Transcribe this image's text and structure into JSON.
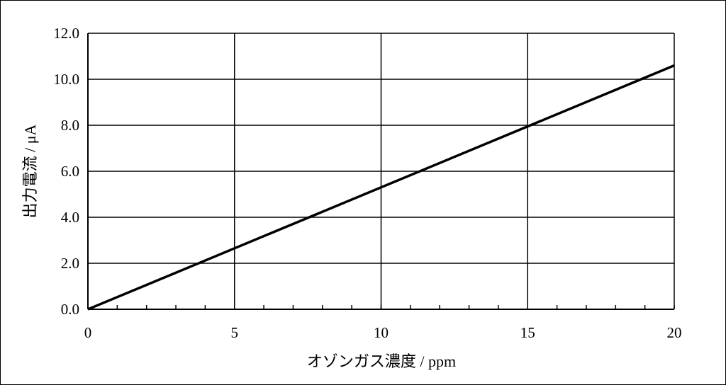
{
  "chart_data": {
    "type": "line",
    "title": "",
    "xlabel": "オゾンガス濃度 / ppm",
    "ylabel": "出力電流 / μA",
    "xlim": [
      0,
      20
    ],
    "ylim": [
      0,
      12
    ],
    "x_ticks": [
      "0",
      "5",
      "10",
      "15",
      "20"
    ],
    "y_ticks": [
      "0.0",
      "2.0",
      "4.0",
      "6.0",
      "8.0",
      "10.0",
      "12.0"
    ],
    "x_minor_step": 1,
    "grid": true,
    "series": [
      {
        "x": [
          0,
          20
        ],
        "y": [
          0,
          10.6
        ],
        "color": "#000000"
      }
    ]
  }
}
